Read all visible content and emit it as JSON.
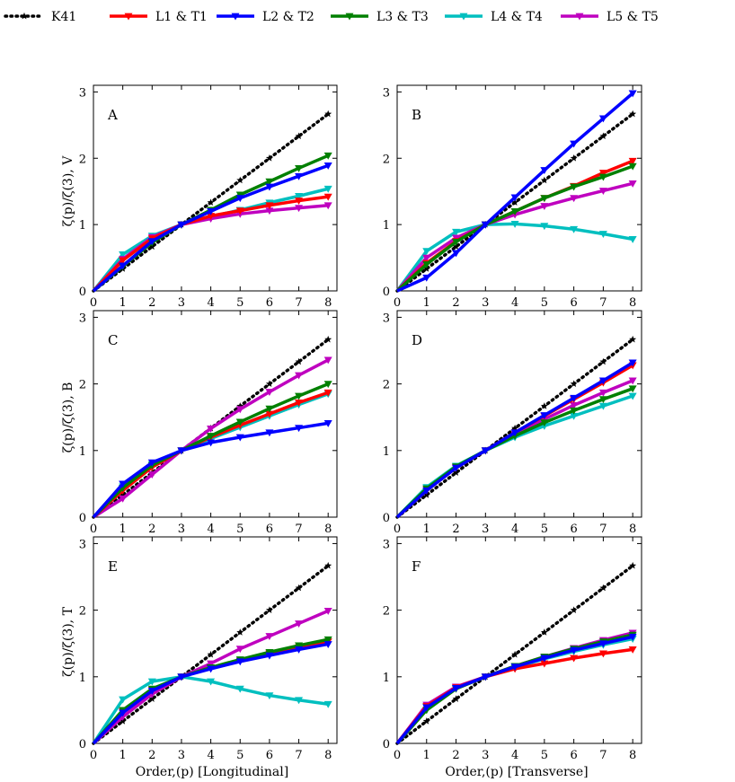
{
  "colors": {
    "K41": "#000000",
    "L1 & T1": "#ff0000",
    "L2 & T2": "#0000ff",
    "L3 & T3": "#008000",
    "L4 & T4": "#00bfbf",
    "L5 & T5": "#bf00bf"
  },
  "legend": {
    "placement": "top",
    "entries": [
      {
        "name": "K41",
        "style": "dotted",
        "marker": "star"
      },
      {
        "name": "L1 & T1",
        "style": "solid",
        "marker": "triangle-down"
      },
      {
        "name": "L2 & T2",
        "style": "solid",
        "marker": "triangle-down"
      },
      {
        "name": "L3 & T3",
        "style": "solid",
        "marker": "triangle-down"
      },
      {
        "name": "L4 & T4",
        "style": "solid",
        "marker": "triangle-down"
      },
      {
        "name": "L5 & T5",
        "style": "solid",
        "marker": "triangle-down"
      }
    ]
  },
  "xlabels": [
    "Order,(p) [Longitudinal]",
    "Order,(p) [Transverse]"
  ],
  "ylabels": [
    "ζ(p)/ζ(3), V",
    "ζ(p)/ζ(3), B",
    "ζ(p)/ζ(3), T"
  ],
  "chart_data": [
    {
      "type": "line",
      "panel_label": "A",
      "x": [
        0,
        1,
        2,
        3,
        4,
        5,
        6,
        7,
        8
      ],
      "xlim": [
        0,
        8.3
      ],
      "ylim": [
        0,
        3.1
      ],
      "grid": false,
      "xticks": [
        0,
        1,
        2,
        3,
        4,
        5,
        6,
        7,
        8
      ],
      "yticks": [
        0,
        1,
        2,
        3
      ],
      "series": [
        {
          "name": "K41",
          "values": [
            0,
            0.333,
            0.667,
            1,
            1.333,
            1.667,
            2,
            2.333,
            2.667
          ]
        },
        {
          "name": "L1 & T1",
          "values": [
            0,
            0.46,
            0.79,
            1,
            1.13,
            1.21,
            1.29,
            1.36,
            1.42
          ]
        },
        {
          "name": "L2 & T2",
          "values": [
            0,
            0.38,
            0.75,
            1,
            1.2,
            1.4,
            1.57,
            1.73,
            1.89
          ]
        },
        {
          "name": "L3 & T3",
          "values": [
            0,
            0.37,
            0.73,
            1,
            1.22,
            1.45,
            1.65,
            1.85,
            2.04
          ]
        },
        {
          "name": "L4 & T4",
          "values": [
            0,
            0.55,
            0.83,
            1,
            1.12,
            1.22,
            1.33,
            1.43,
            1.54
          ]
        },
        {
          "name": "L5 & T5",
          "values": [
            0,
            0.48,
            0.81,
            1,
            1.09,
            1.16,
            1.21,
            1.25,
            1.29
          ]
        }
      ]
    },
    {
      "type": "line",
      "panel_label": "B",
      "x": [
        0,
        1,
        2,
        3,
        4,
        5,
        6,
        7,
        8
      ],
      "xlim": [
        0,
        8.3
      ],
      "ylim": [
        0,
        3.1
      ],
      "grid": false,
      "xticks": [
        0,
        1,
        2,
        3,
        4,
        5,
        6,
        7,
        8
      ],
      "yticks": [
        0,
        1,
        2,
        3
      ],
      "series": [
        {
          "name": "K41",
          "values": [
            0,
            0.333,
            0.667,
            1,
            1.333,
            1.667,
            2,
            2.333,
            2.667
          ]
        },
        {
          "name": "L1 & T1",
          "values": [
            0,
            0.42,
            0.75,
            1,
            1.2,
            1.4,
            1.58,
            1.78,
            1.96
          ]
        },
        {
          "name": "L2 & T2",
          "values": [
            0,
            0.2,
            0.57,
            1,
            1.41,
            1.82,
            2.22,
            2.6,
            2.98
          ]
        },
        {
          "name": "L3 & T3",
          "values": [
            0,
            0.4,
            0.74,
            1,
            1.2,
            1.4,
            1.57,
            1.72,
            1.88
          ]
        },
        {
          "name": "L4 & T4",
          "values": [
            0,
            0.6,
            0.89,
            1,
            1.01,
            0.98,
            0.93,
            0.86,
            0.78
          ]
        },
        {
          "name": "L5 & T5",
          "values": [
            0,
            0.5,
            0.8,
            1,
            1.15,
            1.28,
            1.4,
            1.51,
            1.62
          ]
        }
      ]
    },
    {
      "type": "line",
      "panel_label": "C",
      "x": [
        0,
        1,
        2,
        3,
        4,
        5,
        6,
        7,
        8
      ],
      "xlim": [
        0,
        8.3
      ],
      "ylim": [
        0,
        3.1
      ],
      "grid": false,
      "xticks": [
        0,
        1,
        2,
        3,
        4,
        5,
        6,
        7,
        8
      ],
      "yticks": [
        0,
        1,
        2,
        3
      ],
      "series": [
        {
          "name": "K41",
          "values": [
            0,
            0.333,
            0.667,
            1,
            1.333,
            1.667,
            2,
            2.333,
            2.667
          ]
        },
        {
          "name": "L1 & T1",
          "values": [
            0,
            0.4,
            0.75,
            1,
            1.2,
            1.38,
            1.55,
            1.72,
            1.87
          ]
        },
        {
          "name": "L2 & T2",
          "values": [
            0,
            0.5,
            0.82,
            1,
            1.12,
            1.2,
            1.27,
            1.34,
            1.41
          ]
        },
        {
          "name": "L3 & T3",
          "values": [
            0,
            0.44,
            0.78,
            1,
            1.22,
            1.43,
            1.63,
            1.82,
            2.0
          ]
        },
        {
          "name": "L4 & T4",
          "values": [
            0,
            0.46,
            0.79,
            1,
            1.18,
            1.35,
            1.52,
            1.69,
            1.85
          ]
        },
        {
          "name": "L5 & T5",
          "values": [
            0,
            0.28,
            0.64,
            1,
            1.33,
            1.62,
            1.88,
            2.13,
            2.36
          ]
        }
      ]
    },
    {
      "type": "line",
      "panel_label": "D",
      "x": [
        0,
        1,
        2,
        3,
        4,
        5,
        6,
        7,
        8
      ],
      "xlim": [
        0,
        8.3
      ],
      "ylim": [
        0,
        3.1
      ],
      "grid": false,
      "xticks": [
        0,
        1,
        2,
        3,
        4,
        5,
        6,
        7,
        8
      ],
      "yticks": [
        0,
        1,
        2,
        3
      ],
      "series": [
        {
          "name": "K41",
          "values": [
            0,
            0.333,
            0.667,
            1,
            1.333,
            1.667,
            2,
            2.333,
            2.667
          ]
        },
        {
          "name": "L1 & T1",
          "values": [
            0,
            0.4,
            0.74,
            1,
            1.27,
            1.52,
            1.77,
            2.02,
            2.28
          ]
        },
        {
          "name": "L2 & T2",
          "values": [
            0,
            0.4,
            0.74,
            1,
            1.27,
            1.53,
            1.79,
            2.05,
            2.32
          ]
        },
        {
          "name": "L3 & T3",
          "values": [
            0,
            0.43,
            0.76,
            1,
            1.22,
            1.42,
            1.6,
            1.77,
            1.93
          ]
        },
        {
          "name": "L4 & T4",
          "values": [
            0,
            0.45,
            0.77,
            1,
            1.2,
            1.37,
            1.52,
            1.67,
            1.82
          ]
        },
        {
          "name": "L5 & T5",
          "values": [
            0,
            0.42,
            0.75,
            1,
            1.24,
            1.47,
            1.68,
            1.87,
            2.05
          ]
        }
      ]
    },
    {
      "type": "line",
      "panel_label": "E",
      "x": [
        0,
        1,
        2,
        3,
        4,
        5,
        6,
        7,
        8
      ],
      "xlim": [
        0,
        8.3
      ],
      "ylim": [
        0,
        3.1
      ],
      "grid": false,
      "xticks": [
        0,
        1,
        2,
        3,
        4,
        5,
        6,
        7,
        8
      ],
      "yticks": [
        0,
        1,
        2,
        3
      ],
      "series": [
        {
          "name": "K41",
          "values": [
            0,
            0.333,
            0.667,
            1,
            1.333,
            1.667,
            2,
            2.333,
            2.667
          ]
        },
        {
          "name": "L1 & T1",
          "values": [
            0,
            0.48,
            0.8,
            1,
            1.13,
            1.24,
            1.35,
            1.44,
            1.53
          ]
        },
        {
          "name": "L2 & T2",
          "values": [
            0,
            0.46,
            0.79,
            1,
            1.12,
            1.23,
            1.32,
            1.41,
            1.49
          ]
        },
        {
          "name": "L3 & T3",
          "values": [
            0,
            0.5,
            0.82,
            1,
            1.14,
            1.26,
            1.37,
            1.47,
            1.56
          ]
        },
        {
          "name": "L4 & T4",
          "values": [
            0,
            0.66,
            0.93,
            1,
            0.93,
            0.82,
            0.72,
            0.65,
            0.59
          ]
        },
        {
          "name": "L5 & T5",
          "values": [
            0,
            0.4,
            0.74,
            1,
            1.2,
            1.42,
            1.61,
            1.8,
            1.99
          ]
        }
      ]
    },
    {
      "type": "line",
      "panel_label": "F",
      "x": [
        0,
        1,
        2,
        3,
        4,
        5,
        6,
        7,
        8
      ],
      "xlim": [
        0,
        8.3
      ],
      "ylim": [
        0,
        3.1
      ],
      "grid": false,
      "xticks": [
        0,
        1,
        2,
        3,
        4,
        5,
        6,
        7,
        8
      ],
      "yticks": [
        0,
        1,
        2,
        3
      ],
      "series": [
        {
          "name": "K41",
          "values": [
            0,
            0.333,
            0.667,
            1,
            1.333,
            1.667,
            2,
            2.333,
            2.667
          ]
        },
        {
          "name": "L1 & T1",
          "values": [
            0,
            0.56,
            0.84,
            1,
            1.12,
            1.2,
            1.28,
            1.35,
            1.41
          ]
        },
        {
          "name": "L2 & T2",
          "values": [
            0,
            0.54,
            0.83,
            1,
            1.15,
            1.28,
            1.4,
            1.5,
            1.6
          ]
        },
        {
          "name": "L3 & T3",
          "values": [
            0,
            0.5,
            0.82,
            1,
            1.16,
            1.3,
            1.42,
            1.53,
            1.63
          ]
        },
        {
          "name": "L4 & T4",
          "values": [
            0,
            0.55,
            0.83,
            1,
            1.14,
            1.27,
            1.38,
            1.48,
            1.57
          ]
        },
        {
          "name": "L5 & T5",
          "values": [
            0,
            0.58,
            0.85,
            1,
            1.16,
            1.3,
            1.43,
            1.55,
            1.66
          ]
        }
      ]
    }
  ]
}
